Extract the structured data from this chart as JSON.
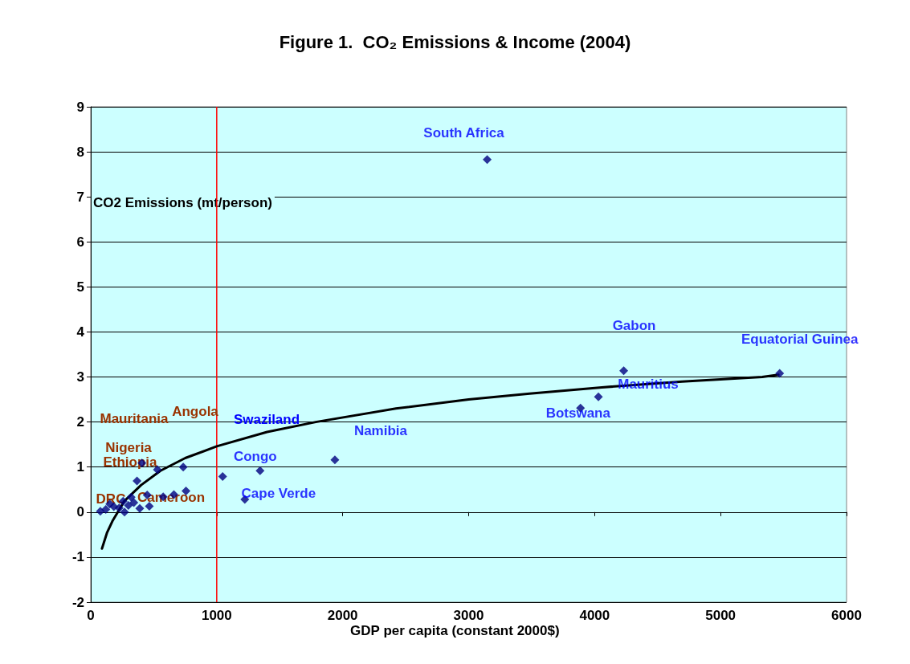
{
  "chart_data": {
    "type": "scatter",
    "title": "Figure 1.  CO₂ Emissions & Income (2004)",
    "xlabel": "GDP per capita (constant 2000$)",
    "ylabel": "CO2 Emissions (mt/person)",
    "xlim": [
      0,
      6000
    ],
    "xticks": [
      0,
      1000,
      2000,
      3000,
      4000,
      5000,
      6000
    ],
    "ylim": [
      -2,
      9
    ],
    "yticks": [
      -2,
      -1,
      0,
      1,
      2,
      3,
      4,
      5,
      6,
      7,
      8,
      9
    ],
    "grid": "y",
    "marker": "diamond",
    "series": [
      {
        "color": "#000080",
        "x": [
          76,
          119,
          151,
          183,
          225,
          257,
          268,
          299,
          321,
          342,
          367,
          389,
          406,
          448,
          465,
          529,
          575,
          660,
          734,
          756,
          1047,
          1223,
          1344,
          1938,
          3147,
          3888,
          4030,
          4231,
          5469
        ],
        "values": [
          0.02,
          0.06,
          0.18,
          0.12,
          0.09,
          0.24,
          0.0,
          0.15,
          0.33,
          0.21,
          0.69,
          0.08,
          1.09,
          0.38,
          0.13,
          0.94,
          0.34,
          0.39,
          1.0,
          0.47,
          0.79,
          0.28,
          0.92,
          1.16,
          7.83,
          2.31,
          2.56,
          3.14,
          3.08
        ]
      },
      {
        "type": "line",
        "color": "#000000",
        "marker": "none",
        "x": [
          89,
          130,
          172,
          268,
          400,
          554,
          750,
          1000,
          1400,
          1786,
          2423,
          3000,
          3484,
          4057,
          4694,
          5331,
          5459
        ],
        "values": [
          -0.81,
          -0.45,
          -0.2,
          0.25,
          0.6,
          0.92,
          1.2,
          1.46,
          1.78,
          2.0,
          2.3,
          2.5,
          2.63,
          2.77,
          2.9,
          3.0,
          3.05
        ]
      }
    ],
    "ref_lines": [
      {
        "axis": "x",
        "value": 1000,
        "color": "#ff0000"
      }
    ],
    "annotations": [
      {
        "text": "South Africa",
        "x": 3147,
        "y": 7.83
      },
      {
        "text": "Gabon",
        "x": 4231,
        "y": 3.14
      },
      {
        "text": "Equatorial Guinea",
        "x": 5469,
        "y": 3.08
      },
      {
        "text": "Mauritius",
        "x": 4030,
        "y": 2.56
      },
      {
        "text": "Botswana",
        "x": 3888,
        "y": 2.31
      },
      {
        "text": "Namibia",
        "x": 1938,
        "y": 1.16
      },
      "Swaziland",
      {
        "text": "Congo",
        "x": 1344,
        "y": 0.92
      },
      {
        "text": "Cape Verde",
        "x": 1223,
        "y": 0.28
      },
      "Mauritania",
      "Angola",
      "Nigeria",
      "Ethiopia",
      "DRC",
      "Cameroon"
    ]
  }
}
